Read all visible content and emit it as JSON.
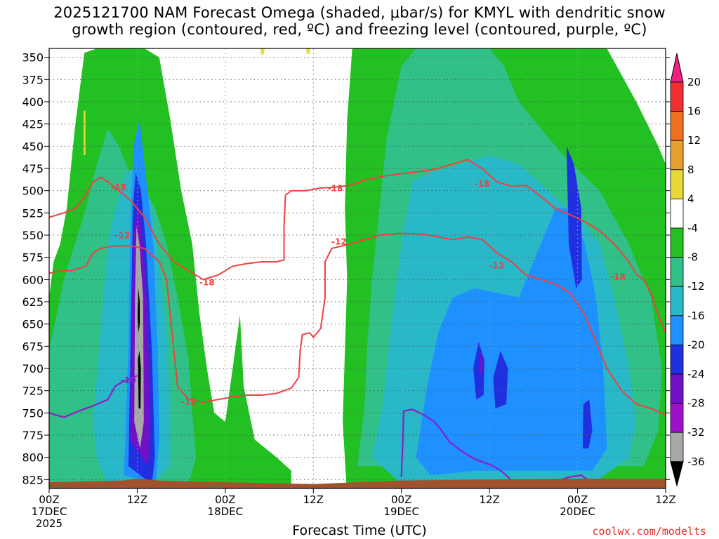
{
  "chart_data": {
    "type": "heatmap",
    "title_line1": "2025121700 NAM Forecast Omega (shaded, μbar/s) for KMYL with dendritic snow",
    "title_line2": "growth region (contoured, red, ºC) and freezing level (contoured, purple, ºC)",
    "xlabel": "Forecast Time (UTC)",
    "credit": "coolwx.com/modelts",
    "x_range_hours": [
      0,
      84
    ],
    "y_range_hpa": [
      340,
      835
    ],
    "x_ticks": [
      {
        "h": 0,
        "l1": "00Z",
        "l2": "17DEC",
        "l3": "2025"
      },
      {
        "h": 12,
        "l1": "12Z",
        "l2": "",
        "l3": ""
      },
      {
        "h": 24,
        "l1": "00Z",
        "l2": "18DEC",
        "l3": ""
      },
      {
        "h": 36,
        "l1": "12Z",
        "l2": "",
        "l3": ""
      },
      {
        "h": 48,
        "l1": "00Z",
        "l2": "19DEC",
        "l3": ""
      },
      {
        "h": 60,
        "l1": "12Z",
        "l2": "",
        "l3": ""
      },
      {
        "h": 72,
        "l1": "00Z",
        "l2": "20DEC",
        "l3": ""
      },
      {
        "h": 84,
        "l1": "12Z",
        "l2": "",
        "l3": ""
      }
    ],
    "y_ticks": [
      "350",
      "375",
      "400",
      "425",
      "450",
      "475",
      "500",
      "525",
      "550",
      "575",
      "600",
      "625",
      "650",
      "675",
      "700",
      "725",
      "750",
      "775",
      "800",
      "825"
    ],
    "colorbar": {
      "labels": [
        "20",
        "16",
        "12",
        "8",
        "4",
        "-4",
        "-8",
        "-12",
        "-16",
        "-20",
        "-24",
        "-28",
        "-32",
        "-36"
      ],
      "colors": [
        "#ee2080",
        "#ee3030",
        "#ee7020",
        "#e8a030",
        "#e8d838",
        "#ffffff",
        "#22c022",
        "#30c088",
        "#28b8c8",
        "#1e90ff",
        "#2030e0",
        "#7010c8",
        "#a010c8",
        "#a8a8a8",
        "#000000"
      ]
    },
    "shading_colors": {
      "w4": "#22c022",
      "w8": "#30c088",
      "w12": "#28b8c8",
      "w16": "#1e90ff",
      "w20": "#2030e0",
      "w24": "#7010c8",
      "w28": "#a010c8",
      "w32": "#a8a8a8",
      "w36": "#000000",
      "up4": "#e8d838",
      "ground": "#a0522d"
    },
    "contour_colors": {
      "dgz": "#f04040",
      "freezing": "#8a20c8"
    },
    "contour_labels": [
      {
        "text": "-18",
        "h": 9.5,
        "p": 496
      },
      {
        "text": "-12",
        "h": 10.0,
        "p": 550
      },
      {
        "text": "-18",
        "h": 21.5,
        "p": 603
      },
      {
        "text": "-12",
        "h": 19.0,
        "p": 737
      },
      {
        "text": "-10",
        "h": 10.8,
        "p": 713
      },
      {
        "text": "-18",
        "h": 39.0,
        "p": 497
      },
      {
        "text": "-12",
        "h": 39.5,
        "p": 557
      },
      {
        "text": "-18",
        "h": 59.0,
        "p": 492
      },
      {
        "text": "-12",
        "h": 61.0,
        "p": 584
      },
      {
        "text": "-18",
        "h": 77.5,
        "p": 596
      }
    ]
  }
}
